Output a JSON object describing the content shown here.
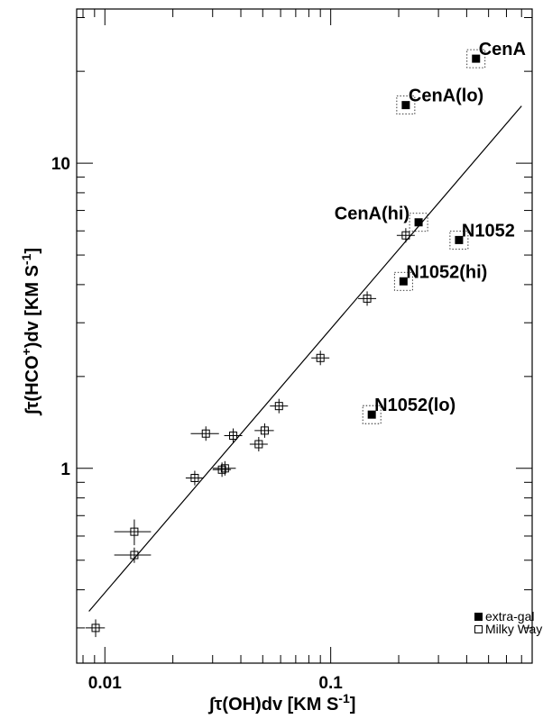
{
  "chart_data": {
    "type": "scatter",
    "xscale": "log",
    "yscale": "log",
    "xlim": [
      0.0075,
      0.78
    ],
    "ylim": [
      0.23,
      32
    ],
    "xlabel": "∫τ(OH)dv [KM S",
    "xlabel_sup": "-1",
    "xlabel_end": "]",
    "ylabel": "∫τ(HCO",
    "ylabel_sup": "+",
    "ylabel_mid": ")dv [KM S",
    "ylabel_sup2": "-1",
    "ylabel_end": "]",
    "xticklabels": [
      {
        "value": 0.01,
        "label": "0.01"
      },
      {
        "value": 0.1,
        "label": "0.1"
      }
    ],
    "yticklabels": [
      {
        "value": 1,
        "label": "1"
      },
      {
        "value": 10,
        "label": "10"
      }
    ],
    "fit_line": {
      "x": [
        0.0085,
        0.7
      ],
      "y": [
        0.34,
        15.4
      ]
    },
    "series": [
      {
        "name": "extra-gal",
        "marker": "filled-square",
        "points": [
          {
            "x": 0.44,
            "y": 22.0,
            "label": "CenA"
          },
          {
            "x": 0.215,
            "y": 15.5,
            "label": "CenA(lo)"
          },
          {
            "x": 0.245,
            "y": 6.4,
            "label": "CenA(hi)"
          },
          {
            "x": 0.37,
            "y": 5.6,
            "label": "N1052"
          },
          {
            "x": 0.21,
            "y": 4.1,
            "label": "N1052(hi)"
          },
          {
            "x": 0.152,
            "y": 1.5,
            "label": "N1052(lo)"
          }
        ]
      },
      {
        "name": "Milky Way",
        "marker": "open-square",
        "points": [
          {
            "x": 0.215,
            "y": 5.8,
            "xerr": 0.005,
            "yerr": 0.15
          },
          {
            "x": 0.145,
            "y": 3.6,
            "xerr": 0.004,
            "yerr": 0.1
          },
          {
            "x": 0.09,
            "y": 2.3,
            "xerr": 0.004,
            "yerr": 0.1
          },
          {
            "x": 0.059,
            "y": 1.6,
            "xerr": 0.003,
            "yerr": 0.06
          },
          {
            "x": 0.051,
            "y": 1.33,
            "xerr": 0.005,
            "yerr": 0.04
          },
          {
            "x": 0.048,
            "y": 1.2,
            "xerr": 0.002,
            "yerr": 0.04
          },
          {
            "x": 0.028,
            "y": 1.3,
            "xerr": 0.004,
            "yerr": 0.04
          },
          {
            "x": 0.037,
            "y": 1.28,
            "xerr": 0.003,
            "yerr": 0.04
          },
          {
            "x": 0.034,
            "y": 1.0,
            "xerr": 0.004,
            "yerr": 0.04
          },
          {
            "x": 0.033,
            "y": 0.99,
            "xerr": 0.003,
            "yerr": 0.03
          },
          {
            "x": 0.025,
            "y": 0.93,
            "xerr": 0.002,
            "yerr": 0.05
          },
          {
            "x": 0.0135,
            "y": 0.62,
            "xerr": 0.0025,
            "yerr": 0.06
          },
          {
            "x": 0.0135,
            "y": 0.52,
            "xerr": 0.0025,
            "yerr": 0.03
          },
          {
            "x": 0.0091,
            "y": 0.3,
            "xerr": 0.0009,
            "yerr": 0.02
          }
        ]
      }
    ],
    "legend": {
      "position": "bottom-right",
      "entries": [
        {
          "label": "extra-gal",
          "marker": "filled-square"
        },
        {
          "label": "Milky Way",
          "marker": "open-square"
        }
      ]
    }
  }
}
